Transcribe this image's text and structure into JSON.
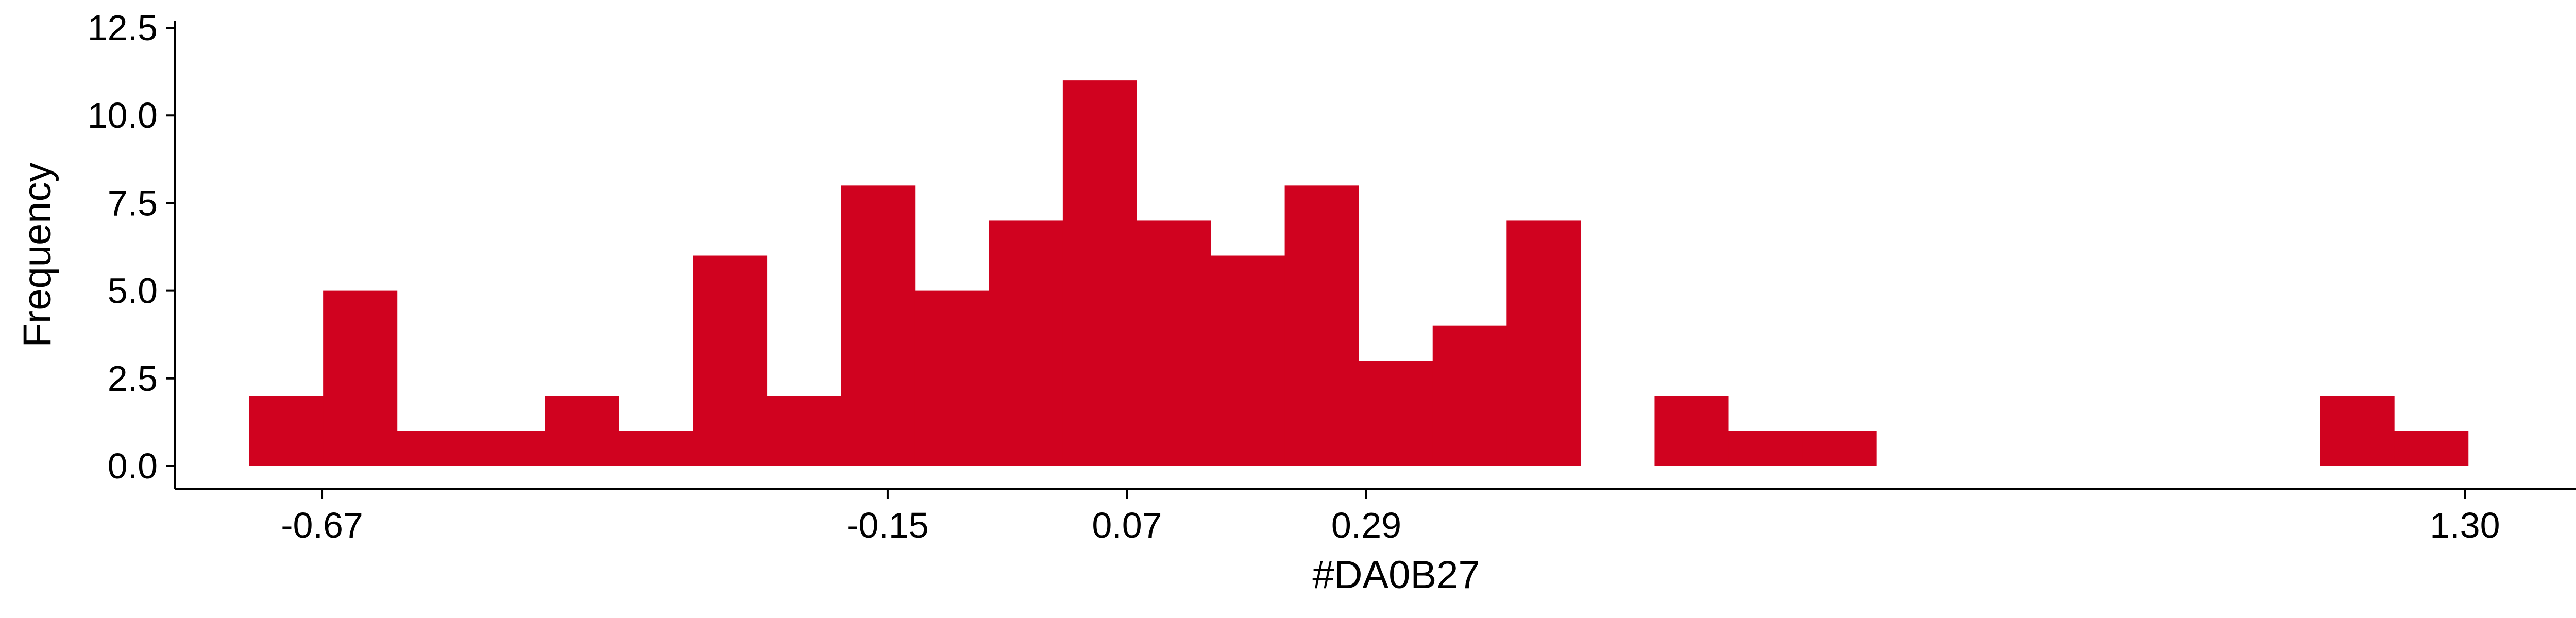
{
  "chart_data": {
    "type": "bar",
    "subtype": "histogram",
    "title": "",
    "xlabel": "#DA0B27",
    "ylabel": "Frequency",
    "bar_color": "#D0021F",
    "xlim": [
      -0.805,
      1.44
    ],
    "ylim": [
      0,
      12.5
    ],
    "x_ticks": [
      {
        "value": -0.67,
        "label": "-0.67"
      },
      {
        "value": -0.15,
        "label": "-0.15"
      },
      {
        "value": 0.07,
        "label": "0.07"
      },
      {
        "value": 0.29,
        "label": "0.29"
      },
      {
        "value": 1.3,
        "label": "1.30"
      }
    ],
    "y_ticks": [
      {
        "value": 0,
        "label": "0.0"
      },
      {
        "value": 2.5,
        "label": "2.5"
      },
      {
        "value": 5,
        "label": "5.0"
      },
      {
        "value": 7.5,
        "label": "7.5"
      },
      {
        "value": 10,
        "label": "10.0"
      },
      {
        "value": 12.5,
        "label": "12.5"
      }
    ],
    "bins": [
      {
        "x0": -0.737,
        "x1": -0.669,
        "count": 2
      },
      {
        "x0": -0.669,
        "x1": -0.601,
        "count": 5
      },
      {
        "x0": -0.601,
        "x1": -0.533,
        "count": 1
      },
      {
        "x0": -0.533,
        "x1": -0.465,
        "count": 1
      },
      {
        "x0": -0.465,
        "x1": -0.397,
        "count": 2
      },
      {
        "x0": -0.397,
        "x1": -0.329,
        "count": 1
      },
      {
        "x0": -0.329,
        "x1": -0.261,
        "count": 6
      },
      {
        "x0": -0.261,
        "x1": -0.193,
        "count": 2
      },
      {
        "x0": -0.193,
        "x1": -0.125,
        "count": 8
      },
      {
        "x0": -0.125,
        "x1": -0.057,
        "count": 5
      },
      {
        "x0": -0.057,
        "x1": 0.011,
        "count": 7
      },
      {
        "x0": 0.011,
        "x1": 0.079,
        "count": 11
      },
      {
        "x0": 0.079,
        "x1": 0.147,
        "count": 7
      },
      {
        "x0": 0.147,
        "x1": 0.215,
        "count": 6
      },
      {
        "x0": 0.215,
        "x1": 0.283,
        "count": 8
      },
      {
        "x0": 0.283,
        "x1": 0.351,
        "count": 3
      },
      {
        "x0": 0.351,
        "x1": 0.419,
        "count": 4
      },
      {
        "x0": 0.419,
        "x1": 0.487,
        "count": 7
      },
      {
        "x0": 0.487,
        "x1": 0.555,
        "count": 0
      },
      {
        "x0": 0.555,
        "x1": 0.623,
        "count": 2
      },
      {
        "x0": 0.623,
        "x1": 0.691,
        "count": 1
      },
      {
        "x0": 0.691,
        "x1": 0.759,
        "count": 1
      },
      {
        "x0": 0.759,
        "x1": 0.827,
        "count": 0
      },
      {
        "x0": 0.827,
        "x1": 0.895,
        "count": 0
      },
      {
        "x0": 0.895,
        "x1": 0.963,
        "count": 0
      },
      {
        "x0": 0.963,
        "x1": 1.031,
        "count": 0
      },
      {
        "x0": 1.031,
        "x1": 1.099,
        "count": 0
      },
      {
        "x0": 1.099,
        "x1": 1.167,
        "count": 0
      },
      {
        "x0": 1.167,
        "x1": 1.235,
        "count": 2
      },
      {
        "x0": 1.235,
        "x1": 1.303,
        "count": 1
      }
    ],
    "grid": false,
    "legend": "none"
  }
}
